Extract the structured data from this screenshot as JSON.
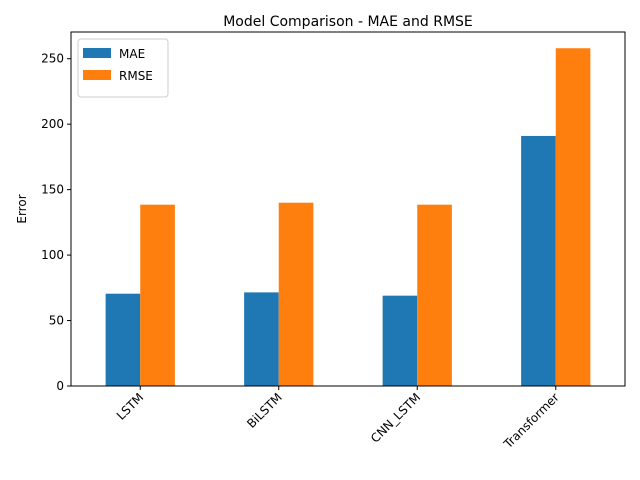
{
  "chart_data": {
    "type": "bar",
    "title": "Model Comparison - MAE and RMSE",
    "xlabel": "",
    "ylabel": "Error",
    "categories": [
      "LSTM",
      "BiLSTM",
      "CNN_LSTM",
      "Transformer"
    ],
    "series": [
      {
        "name": "MAE",
        "values": [
          70.5,
          71.5,
          69.0,
          191.0
        ],
        "color": "#1f77b4"
      },
      {
        "name": "RMSE",
        "values": [
          138.5,
          140.0,
          138.5,
          258.0
        ],
        "color": "#ff7f0e"
      }
    ],
    "ylim": [
      0,
      270.4
    ],
    "yticks": [
      0,
      50,
      100,
      150,
      200,
      250
    ],
    "grid": false,
    "legend_position": "top-left"
  }
}
